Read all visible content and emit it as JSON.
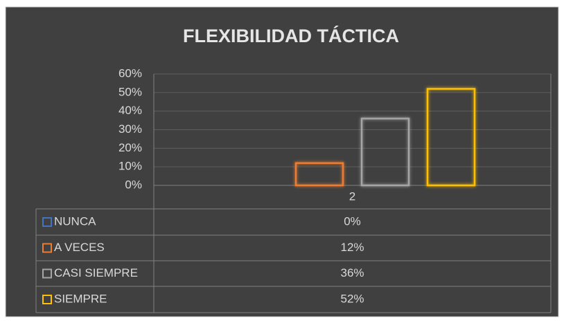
{
  "chart_data": {
    "type": "bar",
    "title": "FLEXIBILIDAD TÁCTICA",
    "categories": [
      "2"
    ],
    "series": [
      {
        "name": "NUNCA",
        "color": "#4472c4",
        "values": [
          0
        ],
        "value_labels": [
          "0%"
        ]
      },
      {
        "name": "A VECES",
        "color": "#ed7d31",
        "values": [
          12
        ],
        "value_labels": [
          "12%"
        ]
      },
      {
        "name": "CASI SIEMPRE",
        "color": "#a5a5a5",
        "values": [
          36
        ],
        "value_labels": [
          "36%"
        ]
      },
      {
        "name": "SIEMPRE",
        "color": "#ffc000",
        "values": [
          52
        ],
        "value_labels": [
          "52%"
        ]
      }
    ],
    "ylim": [
      0,
      60
    ],
    "yticks": [
      {
        "value": 0,
        "label": "0%"
      },
      {
        "value": 10,
        "label": "10%"
      },
      {
        "value": 20,
        "label": "20%"
      },
      {
        "value": 30,
        "label": "30%"
      },
      {
        "value": 40,
        "label": "40%"
      },
      {
        "value": 50,
        "label": "50%"
      },
      {
        "value": 60,
        "label": "60%"
      }
    ],
    "grid": true
  }
}
